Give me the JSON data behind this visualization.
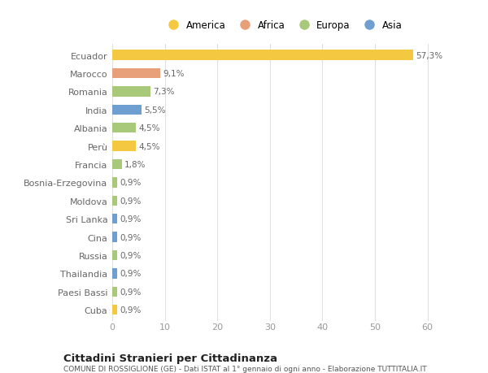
{
  "categories": [
    "Cuba",
    "Paesi Bassi",
    "Thailandia",
    "Russia",
    "Cina",
    "Sri Lanka",
    "Moldova",
    "Bosnia-Erzegovina",
    "Francia",
    "Perù",
    "Albania",
    "India",
    "Romania",
    "Marocco",
    "Ecuador"
  ],
  "values": [
    0.9,
    0.9,
    0.9,
    0.9,
    0.9,
    0.9,
    0.9,
    0.9,
    1.8,
    4.5,
    4.5,
    5.5,
    7.3,
    9.1,
    57.3
  ],
  "labels": [
    "0,9%",
    "0,9%",
    "0,9%",
    "0,9%",
    "0,9%",
    "0,9%",
    "0,9%",
    "0,9%",
    "1,8%",
    "4,5%",
    "4,5%",
    "5,5%",
    "7,3%",
    "9,1%",
    "57,3%"
  ],
  "colors": [
    "#f5c842",
    "#a8c87a",
    "#6e9fd0",
    "#a8c87a",
    "#6e9fd0",
    "#6e9fd0",
    "#a8c87a",
    "#a8c87a",
    "#a8c87a",
    "#f5c842",
    "#a8c87a",
    "#6e9fd0",
    "#a8c87a",
    "#e8a07a",
    "#f5c842"
  ],
  "legend_labels": [
    "America",
    "Africa",
    "Europa",
    "Asia"
  ],
  "legend_colors": [
    "#f5c842",
    "#e8a07a",
    "#a8c87a",
    "#6e9fd0"
  ],
  "title": "Cittadini Stranieri per Cittadinanza",
  "subtitle": "COMUNE DI ROSSIGLIONE (GE) - Dati ISTAT al 1° gennaio di ogni anno - Elaborazione TUTTITALIA.IT",
  "xlim": [
    0,
    65
  ],
  "xticks": [
    0,
    10,
    20,
    30,
    40,
    50,
    60
  ],
  "bg_color": "#ffffff",
  "grid_color": "#e0e0e0",
  "label_color": "#666666",
  "tick_color": "#999999"
}
